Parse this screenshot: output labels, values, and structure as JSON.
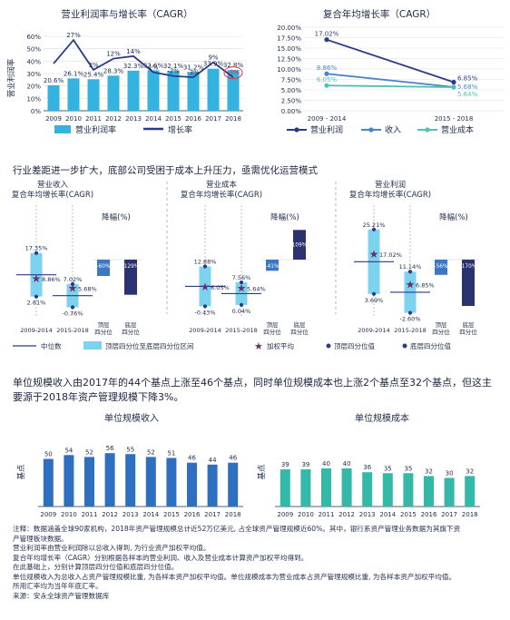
{
  "top_left": {
    "title": "营业利润率与增长率（CAGR）",
    "ylabel": "营业利润率",
    "legend": [
      "营业利润率",
      "增长率"
    ],
    "y_ticks": [
      "0%",
      "10%",
      "20%",
      "30%",
      "40%",
      "50%",
      "60%"
    ],
    "colors": {
      "bar": "#35b3e0",
      "line": "#2b3a87",
      "highlight": "#d8333a"
    }
  },
  "top_right": {
    "title": "复合年均增长率（CAGR）",
    "y_ticks": [
      "0.00%",
      "2.50%",
      "5.00%",
      "7.50%",
      "10.00%",
      "12.50%",
      "15.00%",
      "17.50%",
      "20.00%"
    ],
    "legend": [
      "营业利润",
      "收入",
      "营业成本"
    ],
    "colors": {
      "profit": "#2b3a87",
      "revenue": "#4c84c9",
      "cost": "#52c2b0"
    }
  },
  "middle": {
    "heading": "行业差距进一步扩大，底部公司受困于成本上升压力，亟需优化运营模式",
    "panels": [
      {
        "title1": "营业收入",
        "title2": "复合年均增长率(CAGR)",
        "drop_title": "降幅(%)"
      },
      {
        "title1": "营业成本",
        "title2": "复合年均增长率(CAGR)",
        "drop_title": "降幅(%)"
      },
      {
        "title1": "营业利润",
        "title2": "复合年均增长率(CAGR)",
        "drop_title": "降幅(%)"
      }
    ],
    "period_labels": [
      "2009-2014",
      "2015-2018"
    ],
    "drop_labels": [
      "顶层四分位",
      "底层四分位"
    ],
    "legend": [
      "中位数",
      "顶层四分位至底层四分位区间",
      "加权平均",
      "顶层四分位值",
      "底层四分位值"
    ],
    "colors": {
      "box": "#7dd3ef",
      "median": "#2b3a87",
      "star": "#6b2f6b",
      "q_dot": "#2b3a87",
      "drop_top": "#3a78c4",
      "drop_bottom": "#2b3270"
    }
  },
  "bottom": {
    "paragraph": "单位规模收入由2017年的44个基点上涨至46个基点，同时单位规模成本也上涨2个基点至32个基点，但这主要源于2018年资产管理规模下降3%。",
    "colors": {
      "revenue_bar": "#2f6fc2",
      "cost_bar": "#34b8a8"
    }
  },
  "notes": [
    "注释：数据涵盖全球90家机构，2018年资产管理规模总计近52万亿美元, 占全球资产管理规模近60%。其中，银行系资产管理业务数据为其旗下资",
    "产管理板块数据。",
    "营业利润率由营业利润除以总收入得到, 为行业资产加权平均值。",
    "复合年均增长率（CAGR）分别根据各样本的营业利润、收入及营业成本计算资产加权平均得到。",
    "在此基础上，分别计算顶层四分位值和底层四分位值。",
    "单位规模收入为总收入占资产管理规模比重, 为各样本资产加权平均值。单位规模成本为营业成本占资产管理规模比重, 为各样本资产加权平均值。",
    "所用汇率均为当年年底汇率。",
    "来源：安永全球资产管理数据库"
  ],
  "chart_data": [
    {
      "type": "bar",
      "title": "营业利润率与增长率（CAGR）",
      "ylabel": "营业利润率",
      "categories": [
        "2009",
        "2010",
        "2011",
        "2012",
        "2013",
        "2014",
        "2015",
        "2016",
        "2017",
        "2018"
      ],
      "series": [
        {
          "name": "营业利润率",
          "type": "bar",
          "values": [
            20.6,
            26.1,
            25.4,
            28.3,
            32.3,
            32.6,
            32.1,
            31.2,
            33.9,
            32.8
          ],
          "labels": [
            "20.6%",
            "26.1%",
            "25.4%",
            "28.3%",
            "32.3%",
            "32.6%",
            "32.1%",
            "31.2%",
            "33.9%",
            "32.8%"
          ]
        },
        {
          "name": "增长率",
          "type": "line",
          "values": [
            null,
            27,
            3,
            12,
            14,
            1,
            -2,
            -3,
            9,
            -3
          ],
          "labels": [
            "",
            "27%",
            "3%",
            "12%",
            "14%",
            "1%",
            "-2%",
            "-3%",
            "9%",
            "-3%"
          ]
        }
      ],
      "ylim": [
        0,
        60
      ]
    },
    {
      "type": "line",
      "title": "复合年均增长率（CAGR）",
      "categories": [
        "2009 - 2014",
        "2015 - 2018"
      ],
      "series": [
        {
          "name": "营业利润",
          "values": [
            17.02,
            6.85
          ],
          "labels": [
            "17.02%",
            "6.85%"
          ]
        },
        {
          "name": "收入",
          "values": [
            8.86,
            5.68
          ],
          "labels": [
            "8.86%",
            "5.68%"
          ]
        },
        {
          "name": "营业成本",
          "values": [
            6.05,
            5.64
          ],
          "labels": [
            "6.05%",
            "5.64%"
          ]
        }
      ],
      "ylim": [
        0,
        20
      ]
    },
    {
      "type": "box",
      "title": "营业收入 复合年均增长率(CAGR)",
      "categories": [
        "2009-2014",
        "2015-2018"
      ],
      "top_quartile": [
        17.35,
        7.02
      ],
      "bottom_quartile": [
        2.81,
        -0.76
      ],
      "weighted_average": [
        8.86,
        5.68
      ],
      "labels": [
        "17.35%",
        "7.02%",
        "2.81%",
        "-0.76%",
        "8.86%",
        "5.68%"
      ],
      "drop": {
        "categories": [
          "顶层四分位",
          "底层四分位"
        ],
        "values": [
          -60,
          -129
        ],
        "labels": [
          "-60%",
          "-129%"
        ]
      }
    },
    {
      "type": "box",
      "title": "营业成本 复合年均增长率(CAGR)",
      "categories": [
        "2009-2014",
        "2015-2018"
      ],
      "top_quartile": [
        12.88,
        7.56
      ],
      "bottom_quartile": [
        -0.43,
        0.04
      ],
      "weighted_average": [
        6.05,
        5.64
      ],
      "labels": [
        "12.88%",
        "7.56%",
        "-0.43%",
        "0.04%",
        "6.05%",
        "5.64%"
      ],
      "drop": {
        "categories": [
          "顶层四分位",
          "底层四分位"
        ],
        "values": [
          -41,
          109
        ],
        "labels": [
          "-41%",
          "109%"
        ]
      }
    },
    {
      "type": "box",
      "title": "营业利润 复合年均增长率(CAGR)",
      "categories": [
        "2009-2014",
        "2015-2018"
      ],
      "top_quartile": [
        25.21,
        11.14
      ],
      "bottom_quartile": [
        3.69,
        -2.6
      ],
      "weighted_average": [
        17.02,
        6.85
      ],
      "labels": [
        "25.21%",
        "11.14%",
        "3.69%",
        "-2.60%",
        "17.02%",
        "6.85%"
      ],
      "drop": {
        "categories": [
          "顶层四分位",
          "底层四分位"
        ],
        "values": [
          -56,
          -170
        ],
        "labels": [
          "-56%",
          "-170%"
        ]
      }
    },
    {
      "type": "bar",
      "title": "单位规模收入",
      "ylabel": "基点",
      "categories": [
        "2009",
        "2010",
        "2011",
        "2012",
        "2013",
        "2014",
        "2015",
        "2016",
        "2017",
        "2018"
      ],
      "values": [
        50,
        54,
        52,
        56,
        55,
        52,
        51,
        46,
        44,
        46
      ]
    },
    {
      "type": "bar",
      "title": "单位规模成本",
      "ylabel": "基点",
      "categories": [
        "2009",
        "2010",
        "2011",
        "2012",
        "2013",
        "2014",
        "2015",
        "2016",
        "2017",
        "2018"
      ],
      "values": [
        39,
        39,
        40,
        40,
        36,
        35,
        35,
        32,
        30,
        32
      ]
    }
  ]
}
